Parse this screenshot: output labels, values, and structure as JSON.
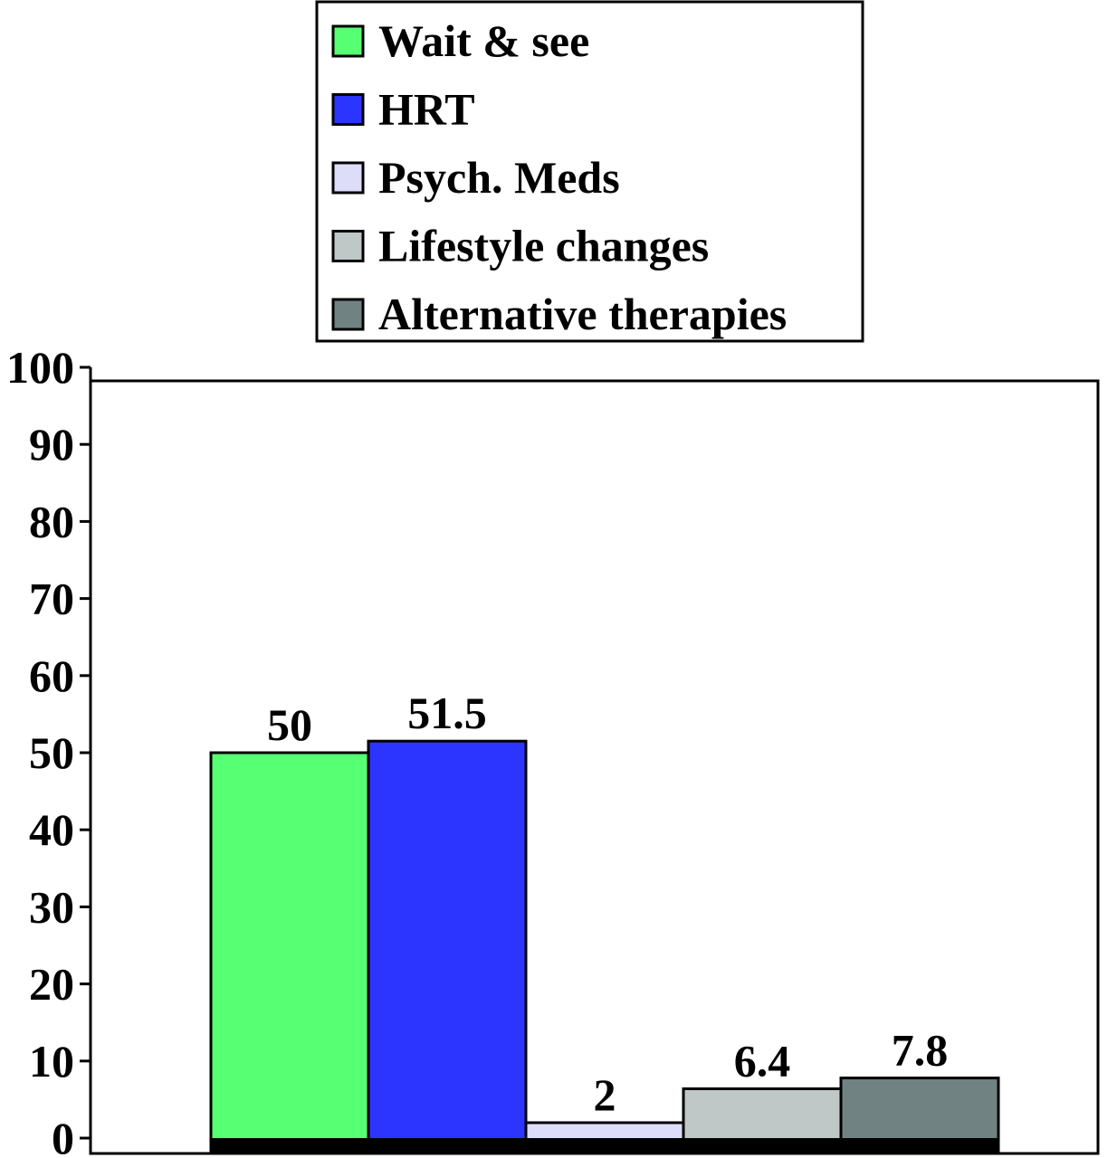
{
  "chart_data": {
    "type": "bar",
    "title": "",
    "xlabel": "",
    "ylabel": "",
    "ylim": [
      0,
      100
    ],
    "yticks": [
      0,
      10,
      20,
      30,
      40,
      50,
      60,
      70,
      80,
      90,
      100
    ],
    "ytick_labels": [
      "0",
      "10",
      "20",
      "30",
      "40",
      "50",
      "60",
      "70",
      "80",
      "90",
      "100"
    ],
    "grid": false,
    "legend_position": "top-center",
    "categories": [
      "Wait & see",
      "HRT",
      "Psych. Meds",
      "Lifestyle changes",
      "Alternative therapies"
    ],
    "series": [
      {
        "name": "Wait & see",
        "value": 50,
        "label": "50",
        "color": "#57FF73"
      },
      {
        "name": "HRT",
        "value": 51.5,
        "label": "51.5",
        "color": "#2B35FF"
      },
      {
        "name": "Psych. Meds",
        "value": 2,
        "label": "2",
        "color": "#DDDDFA"
      },
      {
        "name": "Lifestyle changes",
        "value": 6.4,
        "label": "6.4",
        "color": "#BFC8C6"
      },
      {
        "name": "Alternative therapies",
        "value": 7.8,
        "label": "7.8",
        "color": "#718283"
      }
    ]
  }
}
